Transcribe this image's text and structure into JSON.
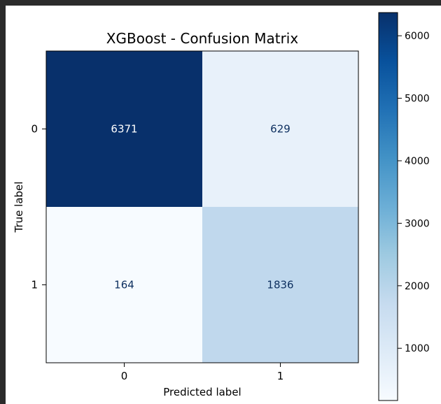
{
  "chart_data": {
    "type": "heatmap",
    "title": "XGBoost - Confusion Matrix",
    "xlabel": "Predicted label",
    "ylabel": "True label",
    "x_categories": [
      "0",
      "1"
    ],
    "y_categories": [
      "0",
      "1"
    ],
    "matrix": [
      [
        6371,
        629
      ],
      [
        164,
        1836
      ]
    ],
    "colormap": "Blues",
    "color_range": [
      164,
      6371
    ],
    "colorbar_ticks": [
      "1000",
      "2000",
      "3000",
      "4000",
      "5000",
      "6000"
    ],
    "colorbar_tick_values": [
      1000,
      2000,
      3000,
      4000,
      5000,
      6000
    ],
    "colors": {
      "dark_text": "#0d2f5f",
      "light_text": "#ffffff",
      "frame": "#000000",
      "page_frame": "#2b2b2b"
    }
  }
}
